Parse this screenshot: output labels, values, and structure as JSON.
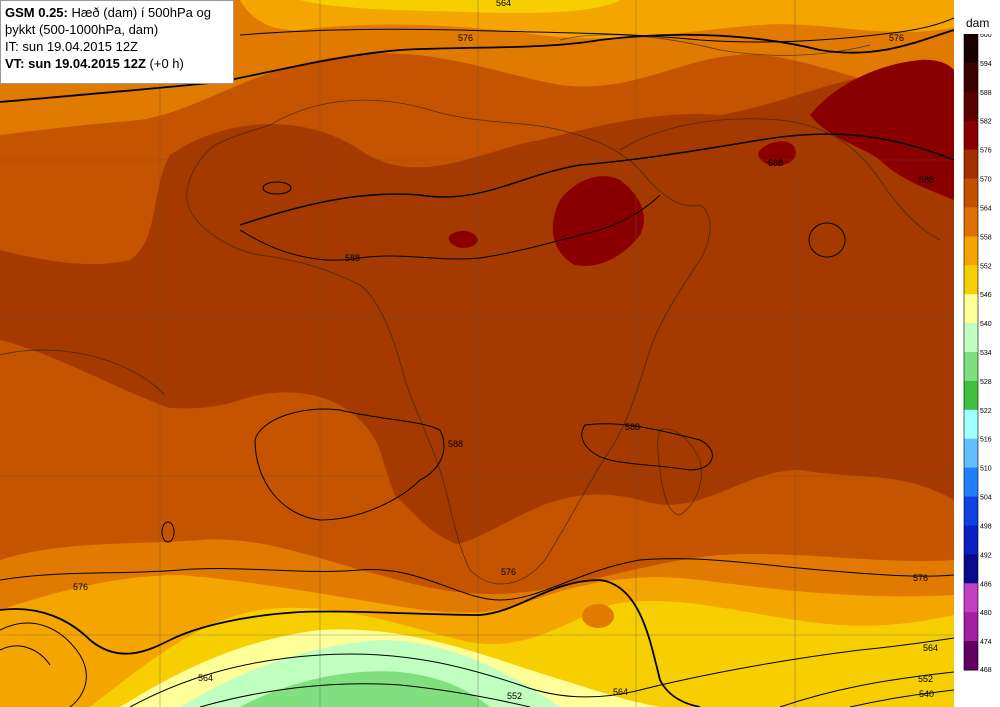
{
  "info": {
    "model": "GSM 0.25:",
    "title_line1": "Hæð (dam) í 500hPa og",
    "title_line2": "þykkt (500-1000hPa, dam)",
    "it_line": "IT: sun 19.04.2015 12Z",
    "vt_bold": "VT: sun 19.04.2015 12Z",
    "vt_suffix": "(+0 h)"
  },
  "legend": {
    "unit": "dam",
    "levels": [
      "600",
      "594",
      "588",
      "582",
      "576",
      "570",
      "564",
      "558",
      "552",
      "546",
      "540",
      "534",
      "528",
      "522",
      "516",
      "510",
      "504",
      "498",
      "492",
      "486",
      "480",
      "474",
      "468"
    ],
    "colors": [
      "#1a0000",
      "#3b0000",
      "#5c0000",
      "#8a0000",
      "#a33000",
      "#c45000",
      "#e07000",
      "#f5a300",
      "#f5d000",
      "#ffff99",
      "#c0ffc0",
      "#80e080",
      "#40c040",
      "#a0ffff",
      "#60c0ff",
      "#2080ff",
      "#1040e0",
      "#0a20c0",
      "#0a0a8a",
      "#c040c0",
      "#a020a0",
      "#600060",
      "#300030"
    ]
  },
  "contour_labels": [
    "564",
    "576",
    "576",
    "588",
    "588",
    "588",
    "588",
    "588",
    "576",
    "576",
    "576",
    "564",
    "564",
    "552",
    "564",
    "552",
    "540"
  ],
  "colors": {
    "band_576_582": "#a53a00",
    "band_570_576": "#c55400",
    "band_564_570": "#e07a00",
    "band_558_564": "#f5a500",
    "band_552_558": "#f7cf00",
    "band_546_552": "#ffff99",
    "band_540_546": "#c0ffc0",
    "band_534_540": "#80e080",
    "band_582_588": "#8a0000"
  }
}
